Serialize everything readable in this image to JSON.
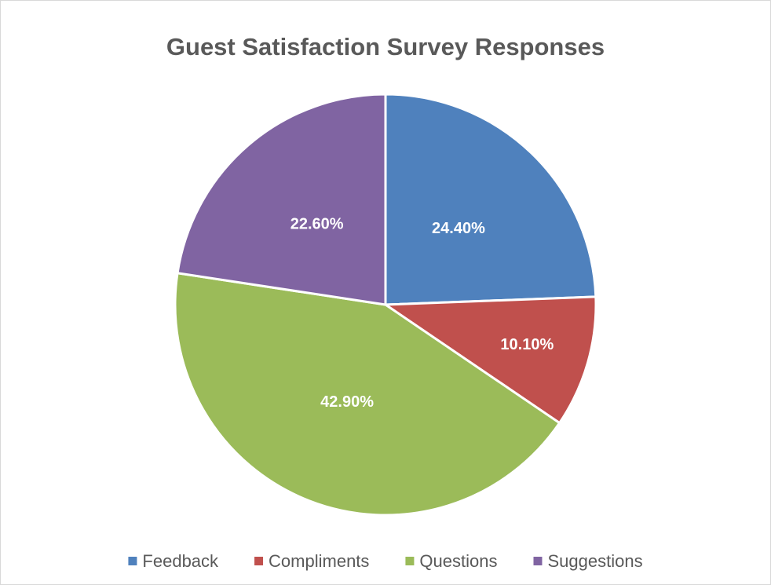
{
  "chart_data": {
    "type": "pie",
    "title": "Guest Satisfaction Survey Responses",
    "categories": [
      "Feedback",
      "Compliments",
      "Questions",
      "Suggestions"
    ],
    "values": [
      24.4,
      10.1,
      42.9,
      22.6
    ],
    "value_labels": [
      "24.40%",
      "10.10%",
      "42.90%",
      "22.60%"
    ],
    "colors": [
      "#4f81bd",
      "#c0504d",
      "#9bbb59",
      "#8064a2"
    ],
    "legend": "bottom"
  }
}
